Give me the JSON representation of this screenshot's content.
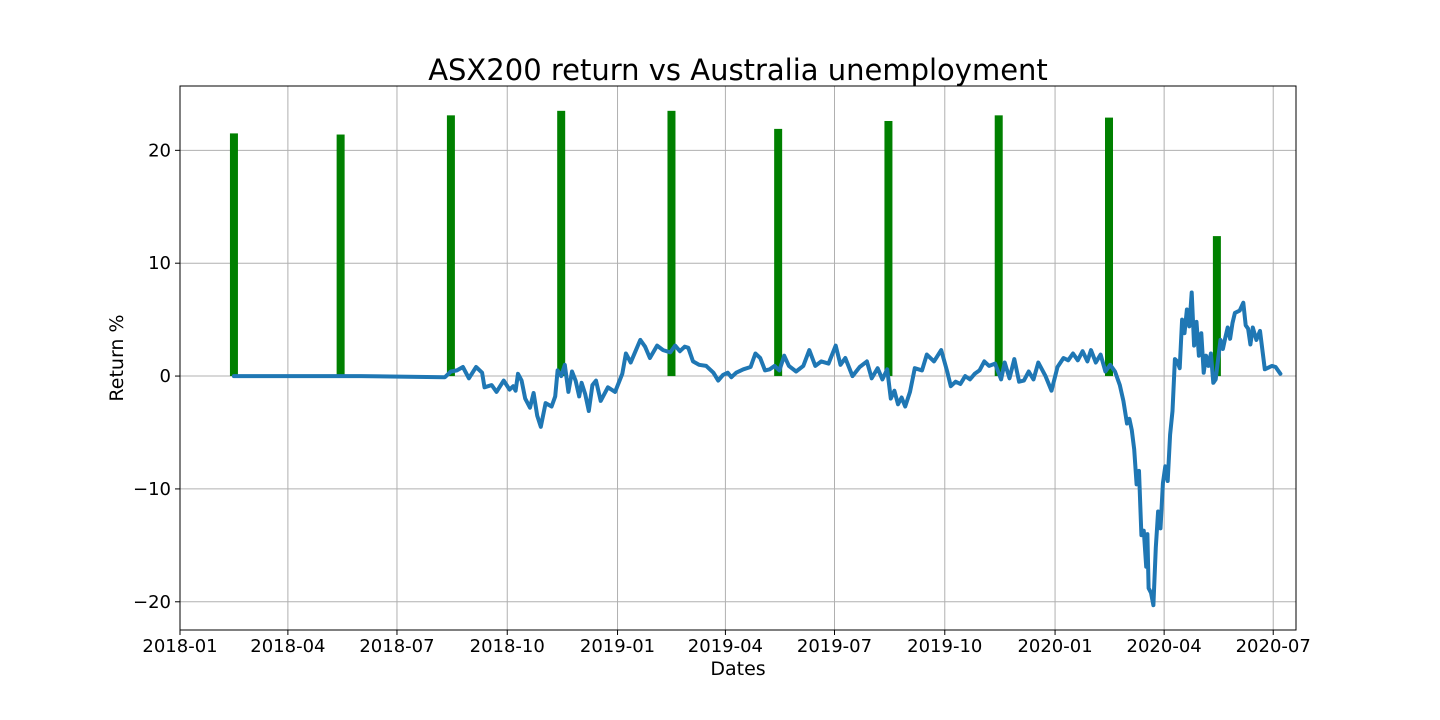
{
  "chart_data": {
    "type": "bar",
    "title": "ASX200 return vs Australia unemployment",
    "xlabel": "Dates",
    "ylabel": "Return %",
    "grid": true,
    "xlim": [
      "2018-01-01",
      "2020-07-20"
    ],
    "ylim": [
      -22.5,
      25.7
    ],
    "x_ticks": [
      "2018-01",
      "2018-04",
      "2018-07",
      "2018-10",
      "2019-01",
      "2019-04",
      "2019-07",
      "2019-10",
      "2020-01",
      "2020-04",
      "2020-07"
    ],
    "y_ticks": [
      -20,
      -10,
      0,
      10,
      20
    ],
    "y_tick_labels": [
      "−20",
      "−10",
      "0",
      "10",
      "20"
    ],
    "colors": {
      "bars": "#008000",
      "line": "#1f77b4"
    },
    "series": [
      {
        "type": "bar",
        "x": [
          "2018-02-15",
          "2018-05-15",
          "2018-08-15",
          "2018-11-15",
          "2019-02-15",
          "2019-05-15",
          "2019-08-15",
          "2019-11-15",
          "2020-02-15",
          "2020-05-15"
        ],
        "values": [
          21.5,
          21.4,
          23.1,
          23.5,
          23.5,
          21.9,
          22.6,
          23.1,
          22.9,
          12.4
        ]
      },
      {
        "type": "line",
        "points": [
          [
            "2018-02-15",
            0.0
          ],
          [
            "2018-06-01",
            0.0
          ],
          [
            "2018-08-10",
            -0.1
          ],
          [
            "2018-08-15",
            0.4
          ],
          [
            "2018-08-20",
            0.5
          ],
          [
            "2018-08-25",
            0.8
          ],
          [
            "2018-08-30",
            -0.2
          ],
          [
            "2018-09-05",
            0.8
          ],
          [
            "2018-09-10",
            0.3
          ],
          [
            "2018-09-12",
            -1.0
          ],
          [
            "2018-09-18",
            -0.8
          ],
          [
            "2018-09-22",
            -1.4
          ],
          [
            "2018-09-28",
            -0.4
          ],
          [
            "2018-10-03",
            -1.2
          ],
          [
            "2018-10-06",
            -0.9
          ],
          [
            "2018-10-08",
            -1.3
          ],
          [
            "2018-10-10",
            0.2
          ],
          [
            "2018-10-13",
            -0.4
          ],
          [
            "2018-10-16",
            -2.0
          ],
          [
            "2018-10-20",
            -2.8
          ],
          [
            "2018-10-23",
            -1.5
          ],
          [
            "2018-10-26",
            -3.5
          ],
          [
            "2018-10-29",
            -4.5
          ],
          [
            "2018-11-02",
            -2.4
          ],
          [
            "2018-11-07",
            -2.7
          ],
          [
            "2018-11-10",
            -1.8
          ],
          [
            "2018-11-12",
            0.5
          ],
          [
            "2018-11-15",
            0.0
          ],
          [
            "2018-11-18",
            1.0
          ],
          [
            "2018-11-21",
            -1.4
          ],
          [
            "2018-11-24",
            0.4
          ],
          [
            "2018-11-27",
            -0.4
          ],
          [
            "2018-11-30",
            -1.8
          ],
          [
            "2018-12-02",
            -0.6
          ],
          [
            "2018-12-05",
            -1.6
          ],
          [
            "2018-12-08",
            -3.1
          ],
          [
            "2018-12-11",
            -0.8
          ],
          [
            "2018-12-14",
            -0.4
          ],
          [
            "2018-12-18",
            -2.2
          ],
          [
            "2018-12-24",
            -1.0
          ],
          [
            "2018-12-30",
            -1.4
          ],
          [
            "2019-01-05",
            0.2
          ],
          [
            "2019-01-08",
            2.0
          ],
          [
            "2019-01-12",
            1.2
          ],
          [
            "2019-01-16",
            2.2
          ],
          [
            "2019-01-20",
            3.2
          ],
          [
            "2019-01-24",
            2.6
          ],
          [
            "2019-01-28",
            1.6
          ],
          [
            "2019-02-03",
            2.7
          ],
          [
            "2019-02-08",
            2.3
          ],
          [
            "2019-02-14",
            2.1
          ],
          [
            "2019-02-18",
            2.7
          ],
          [
            "2019-02-22",
            2.2
          ],
          [
            "2019-02-26",
            2.6
          ],
          [
            "2019-03-01",
            2.5
          ],
          [
            "2019-03-05",
            1.3
          ],
          [
            "2019-03-10",
            1.0
          ],
          [
            "2019-03-16",
            0.9
          ],
          [
            "2019-03-22",
            0.3
          ],
          [
            "2019-03-26",
            -0.4
          ],
          [
            "2019-03-30",
            0.1
          ],
          [
            "2019-04-03",
            0.3
          ],
          [
            "2019-04-06",
            -0.1
          ],
          [
            "2019-04-10",
            0.3
          ],
          [
            "2019-04-16",
            0.6
          ],
          [
            "2019-04-22",
            0.8
          ],
          [
            "2019-04-26",
            2.0
          ],
          [
            "2019-04-30",
            1.6
          ],
          [
            "2019-05-04",
            0.5
          ],
          [
            "2019-05-08",
            0.6
          ],
          [
            "2019-05-12",
            0.9
          ],
          [
            "2019-05-16",
            0.5
          ],
          [
            "2019-05-20",
            1.8
          ],
          [
            "2019-05-24",
            0.9
          ],
          [
            "2019-05-30",
            0.4
          ],
          [
            "2019-06-05",
            0.9
          ],
          [
            "2019-06-10",
            2.3
          ],
          [
            "2019-06-15",
            0.9
          ],
          [
            "2019-06-20",
            1.3
          ],
          [
            "2019-06-26",
            1.1
          ],
          [
            "2019-07-02",
            2.7
          ],
          [
            "2019-07-06",
            1.0
          ],
          [
            "2019-07-10",
            1.6
          ],
          [
            "2019-07-16",
            0.0
          ],
          [
            "2019-07-22",
            0.8
          ],
          [
            "2019-07-28",
            1.3
          ],
          [
            "2019-08-01",
            -0.2
          ],
          [
            "2019-08-06",
            0.7
          ],
          [
            "2019-08-10",
            -0.3
          ],
          [
            "2019-08-14",
            0.6
          ],
          [
            "2019-08-17",
            -2.0
          ],
          [
            "2019-08-20",
            -1.3
          ],
          [
            "2019-08-23",
            -2.5
          ],
          [
            "2019-08-26",
            -1.9
          ],
          [
            "2019-08-29",
            -2.7
          ],
          [
            "2019-09-02",
            -1.4
          ],
          [
            "2019-09-06",
            0.7
          ],
          [
            "2019-09-12",
            0.5
          ],
          [
            "2019-09-16",
            1.9
          ],
          [
            "2019-09-22",
            1.3
          ],
          [
            "2019-09-28",
            2.3
          ],
          [
            "2019-10-03",
            0.4
          ],
          [
            "2019-10-06",
            -0.9
          ],
          [
            "2019-10-10",
            -0.5
          ],
          [
            "2019-10-14",
            -0.7
          ],
          [
            "2019-10-18",
            0.0
          ],
          [
            "2019-10-22",
            -0.3
          ],
          [
            "2019-10-26",
            0.2
          ],
          [
            "2019-10-30",
            0.5
          ],
          [
            "2019-11-03",
            1.3
          ],
          [
            "2019-11-07",
            0.9
          ],
          [
            "2019-11-12",
            1.1
          ],
          [
            "2019-11-17",
            -0.3
          ],
          [
            "2019-11-20",
            1.2
          ],
          [
            "2019-11-24",
            -0.2
          ],
          [
            "2019-11-28",
            1.5
          ],
          [
            "2019-12-02",
            -0.5
          ],
          [
            "2019-12-06",
            -0.4
          ],
          [
            "2019-12-10",
            0.4
          ],
          [
            "2019-12-14",
            -0.3
          ],
          [
            "2019-12-18",
            1.2
          ],
          [
            "2019-12-24",
            0.0
          ],
          [
            "2019-12-29",
            -1.3
          ],
          [
            "2020-01-03",
            0.8
          ],
          [
            "2020-01-08",
            1.6
          ],
          [
            "2020-01-12",
            1.4
          ],
          [
            "2020-01-16",
            2.0
          ],
          [
            "2020-01-20",
            1.4
          ],
          [
            "2020-01-24",
            2.2
          ],
          [
            "2020-01-28",
            1.3
          ],
          [
            "2020-01-31",
            2.3
          ],
          [
            "2020-02-04",
            1.2
          ],
          [
            "2020-02-08",
            1.9
          ],
          [
            "2020-02-12",
            0.4
          ],
          [
            "2020-02-16",
            1.0
          ],
          [
            "2020-02-20",
            0.4
          ],
          [
            "2020-02-24",
            -0.8
          ],
          [
            "2020-02-27",
            -2.2
          ],
          [
            "2020-03-01",
            -4.2
          ],
          [
            "2020-03-03",
            -3.8
          ],
          [
            "2020-03-05",
            -4.8
          ],
          [
            "2020-03-07",
            -6.5
          ],
          [
            "2020-03-09",
            -9.6
          ],
          [
            "2020-03-11",
            -8.4
          ],
          [
            "2020-03-13",
            -14.1
          ],
          [
            "2020-03-15",
            -13.7
          ],
          [
            "2020-03-17",
            -16.9
          ],
          [
            "2020-03-18",
            -14.0
          ],
          [
            "2020-03-19",
            -18.8
          ],
          [
            "2020-03-21",
            -19.2
          ],
          [
            "2020-03-23",
            -20.3
          ],
          [
            "2020-03-25",
            -15.2
          ],
          [
            "2020-03-27",
            -12.0
          ],
          [
            "2020-03-29",
            -13.5
          ],
          [
            "2020-03-31",
            -9.5
          ],
          [
            "2020-04-02",
            -8.0
          ],
          [
            "2020-04-04",
            -9.3
          ],
          [
            "2020-04-06",
            -5.2
          ],
          [
            "2020-04-08",
            -3.1
          ],
          [
            "2020-04-10",
            1.5
          ],
          [
            "2020-04-12",
            1.3
          ],
          [
            "2020-04-14",
            0.7
          ],
          [
            "2020-04-16",
            5.0
          ],
          [
            "2020-04-18",
            3.8
          ],
          [
            "2020-04-20",
            5.9
          ],
          [
            "2020-04-22",
            4.4
          ],
          [
            "2020-04-24",
            7.4
          ],
          [
            "2020-04-26",
            2.7
          ],
          [
            "2020-04-28",
            4.8
          ],
          [
            "2020-04-30",
            1.8
          ],
          [
            "2020-05-02",
            3.8
          ],
          [
            "2020-05-04",
            0.3
          ],
          [
            "2020-05-06",
            1.8
          ],
          [
            "2020-05-08",
            0.9
          ],
          [
            "2020-05-10",
            2.0
          ],
          [
            "2020-05-12",
            -0.6
          ],
          [
            "2020-05-14",
            -0.3
          ],
          [
            "2020-05-16",
            1.5
          ],
          [
            "2020-05-18",
            3.2
          ],
          [
            "2020-05-20",
            2.4
          ],
          [
            "2020-05-22",
            3.4
          ],
          [
            "2020-05-24",
            4.3
          ],
          [
            "2020-05-26",
            3.3
          ],
          [
            "2020-05-28",
            4.7
          ],
          [
            "2020-05-30",
            5.6
          ],
          [
            "2020-06-03",
            5.8
          ],
          [
            "2020-06-06",
            6.5
          ],
          [
            "2020-06-08",
            4.5
          ],
          [
            "2020-06-10",
            4.2
          ],
          [
            "2020-06-12",
            2.8
          ],
          [
            "2020-06-14",
            4.3
          ],
          [
            "2020-06-17",
            3.2
          ],
          [
            "2020-06-20",
            4.0
          ],
          [
            "2020-06-24",
            0.6
          ],
          [
            "2020-06-30",
            0.9
          ],
          [
            "2020-07-03",
            0.8
          ],
          [
            "2020-07-07",
            0.2
          ]
        ]
      }
    ]
  }
}
